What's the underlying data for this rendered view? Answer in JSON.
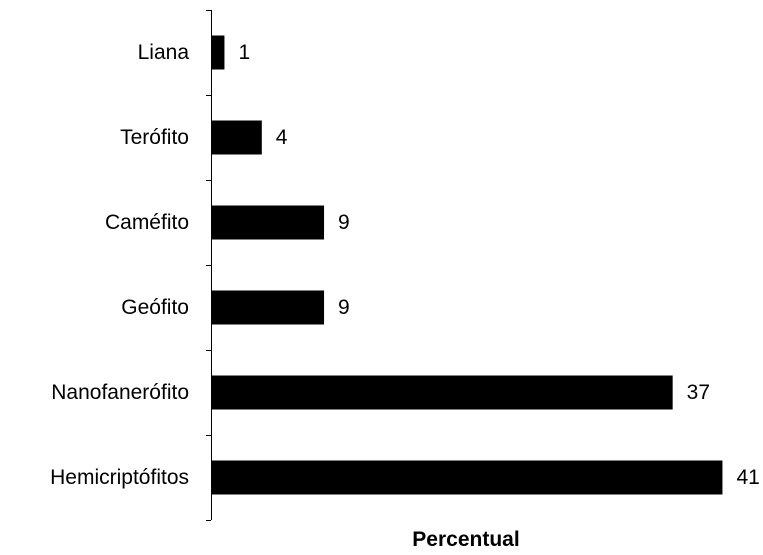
{
  "chart_data": {
    "type": "bar",
    "orientation": "horizontal",
    "categories": [
      "Liana",
      "Terófito",
      "Caméfito",
      "Geófito",
      "Nanofanerófito",
      "Hemicriptófitos"
    ],
    "values": [
      1,
      4,
      9,
      9,
      37,
      41
    ],
    "data_labels": [
      "1",
      "4",
      "9",
      "9",
      "37",
      "41"
    ],
    "title": "",
    "xlabel": "Percentual",
    "ylabel": "",
    "xlim": [
      0,
      41
    ],
    "grid": false,
    "legend": "none",
    "bar_color": "#000000"
  }
}
